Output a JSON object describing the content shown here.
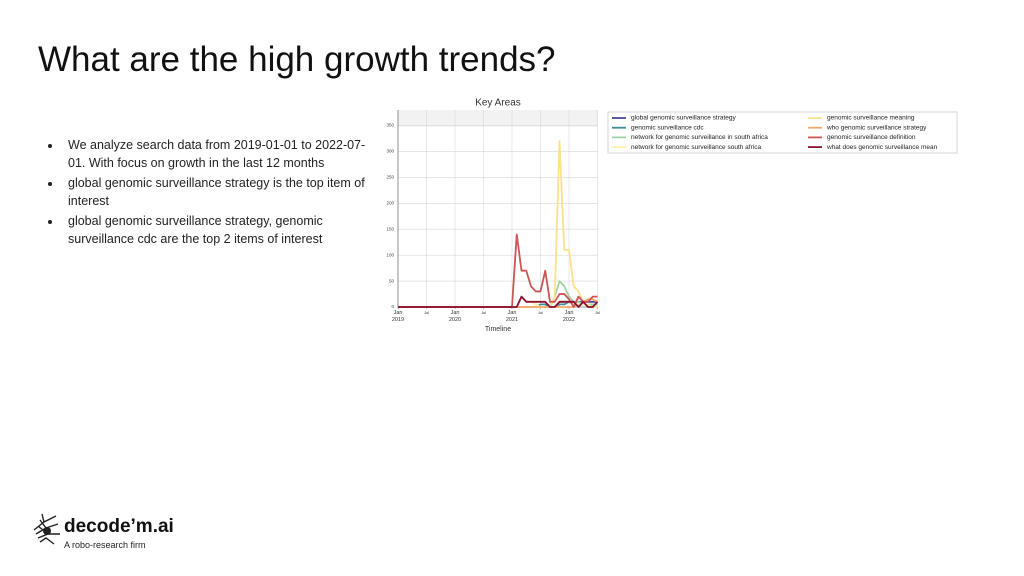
{
  "slide": {
    "title": "What are the high growth trends?",
    "bullets": [
      "We analyze search data from 2019-01-01 to 2022-07-01. With focus on growth in the last 12 months",
      "global genomic surveillance strategy is the top item of interest",
      "global genomic surveillance strategy, genomic surveillance cdc are the top 2 items of interest"
    ],
    "logo": {
      "name": "decode’m.ai",
      "tagline": "A robo-research firm"
    }
  },
  "chart_data": {
    "type": "line",
    "title": "Key Areas",
    "x_label": "Timeline",
    "x": [
      "2019-01",
      "2019-02",
      "2019-03",
      "2019-04",
      "2019-05",
      "2019-06",
      "2019-07",
      "2019-08",
      "2019-09",
      "2019-10",
      "2019-11",
      "2019-12",
      "2020-01",
      "2020-02",
      "2020-03",
      "2020-04",
      "2020-05",
      "2020-06",
      "2020-07",
      "2020-08",
      "2020-09",
      "2020-10",
      "2020-11",
      "2020-12",
      "2021-01",
      "2021-02",
      "2021-03",
      "2021-04",
      "2021-05",
      "2021-06",
      "2021-07",
      "2021-08",
      "2021-09",
      "2021-10",
      "2021-11",
      "2021-12",
      "2022-01",
      "2022-02",
      "2022-03",
      "2022-04",
      "2022-05",
      "2022-06",
      "2022-07"
    ],
    "xlim": [
      "2019-01",
      "2022-07"
    ],
    "xticks": [
      {
        "value": "2019-01",
        "label": "Jan 2019"
      },
      {
        "value": "2019-07",
        "label": "Jul"
      },
      {
        "value": "2020-01",
        "label": "Jan 2020"
      },
      {
        "value": "2020-07",
        "label": "Jul"
      },
      {
        "value": "2021-01",
        "label": "Jan 2021"
      },
      {
        "value": "2021-07",
        "label": "Jul"
      },
      {
        "value": "2022-01",
        "label": "Jan 2022"
      },
      {
        "value": "2022-07",
        "label": "Jul"
      }
    ],
    "ylim": [
      0,
      380
    ],
    "yticks": [
      0,
      50,
      100,
      150,
      200,
      250,
      300,
      350
    ],
    "grid": true,
    "series": [
      {
        "name": "global genomic surveillance strategy",
        "color": "#4a4a9a",
        "values": [
          0,
          0,
          0,
          0,
          0,
          0,
          0,
          0,
          0,
          0,
          0,
          0,
          0,
          0,
          0,
          0,
          0,
          0,
          0,
          0,
          0,
          0,
          0,
          0,
          0,
          0,
          0,
          0,
          0,
          0,
          0,
          0,
          0,
          0,
          10,
          10,
          10,
          10,
          10,
          10,
          10,
          10,
          10
        ]
      },
      {
        "name": "genomic surveillance cdc",
        "color": "#3f8f9a",
        "values": [
          0,
          0,
          0,
          0,
          0,
          0,
          0,
          0,
          0,
          0,
          0,
          0,
          0,
          0,
          0,
          0,
          0,
          0,
          0,
          0,
          0,
          0,
          0,
          0,
          0,
          0,
          0,
          0,
          0,
          0,
          5,
          5,
          0,
          0,
          5,
          5,
          10,
          5,
          5,
          5,
          5,
          5,
          5
        ]
      },
      {
        "name": "network for genomic surveillance in south africa",
        "color": "#9fd3a6",
        "values": [
          0,
          0,
          0,
          0,
          0,
          0,
          0,
          0,
          0,
          0,
          0,
          0,
          0,
          0,
          0,
          0,
          0,
          0,
          0,
          0,
          0,
          0,
          0,
          0,
          0,
          0,
          0,
          0,
          0,
          0,
          0,
          0,
          0,
          20,
          50,
          40,
          20,
          10,
          10,
          5,
          5,
          5,
          5
        ]
      },
      {
        "name": "network for genomic surveillance south africa",
        "color": "#fbf0a6",
        "values": [
          0,
          0,
          0,
          0,
          0,
          0,
          0,
          0,
          0,
          0,
          0,
          0,
          0,
          0,
          0,
          0,
          0,
          0,
          0,
          0,
          0,
          0,
          0,
          0,
          0,
          0,
          20,
          10,
          10,
          5,
          0,
          0,
          0,
          0,
          10,
          10,
          10,
          5,
          5,
          5,
          5,
          0,
          0
        ]
      },
      {
        "name": "genomic surveillance meaning",
        "color": "#fde08c",
        "values": [
          0,
          0,
          0,
          0,
          0,
          0,
          0,
          0,
          0,
          0,
          0,
          0,
          0,
          0,
          0,
          0,
          0,
          0,
          0,
          0,
          0,
          0,
          0,
          0,
          0,
          0,
          0,
          0,
          0,
          0,
          0,
          0,
          0,
          20,
          320,
          110,
          110,
          40,
          30,
          10,
          0,
          0,
          0
        ]
      },
      {
        "name": "who genomic surveillance strategy",
        "color": "#f4a86a",
        "values": [
          0,
          0,
          0,
          0,
          0,
          0,
          0,
          0,
          0,
          0,
          0,
          0,
          0,
          0,
          0,
          0,
          0,
          0,
          0,
          0,
          0,
          0,
          0,
          0,
          0,
          0,
          0,
          0,
          0,
          0,
          0,
          0,
          0,
          0,
          0,
          0,
          0,
          0,
          20,
          10,
          15,
          15,
          10
        ]
      },
      {
        "name": "genomic surveillance definition",
        "color": "#cc5555",
        "values": [
          0,
          0,
          0,
          0,
          0,
          0,
          0,
          0,
          0,
          0,
          0,
          0,
          0,
          0,
          0,
          0,
          0,
          0,
          0,
          0,
          0,
          0,
          0,
          0,
          0,
          140,
          70,
          70,
          40,
          30,
          30,
          70,
          10,
          10,
          25,
          25,
          15,
          0,
          20,
          10,
          10,
          20,
          20
        ]
      },
      {
        "name": "what does genomic surveillance mean",
        "color": "#8a1030",
        "values": [
          0,
          0,
          0,
          0,
          0,
          0,
          0,
          0,
          0,
          0,
          0,
          0,
          0,
          0,
          0,
          0,
          0,
          0,
          0,
          0,
          0,
          0,
          0,
          0,
          0,
          0,
          20,
          10,
          10,
          10,
          10,
          10,
          0,
          0,
          10,
          10,
          10,
          10,
          0,
          10,
          0,
          0,
          10
        ]
      }
    ]
  }
}
